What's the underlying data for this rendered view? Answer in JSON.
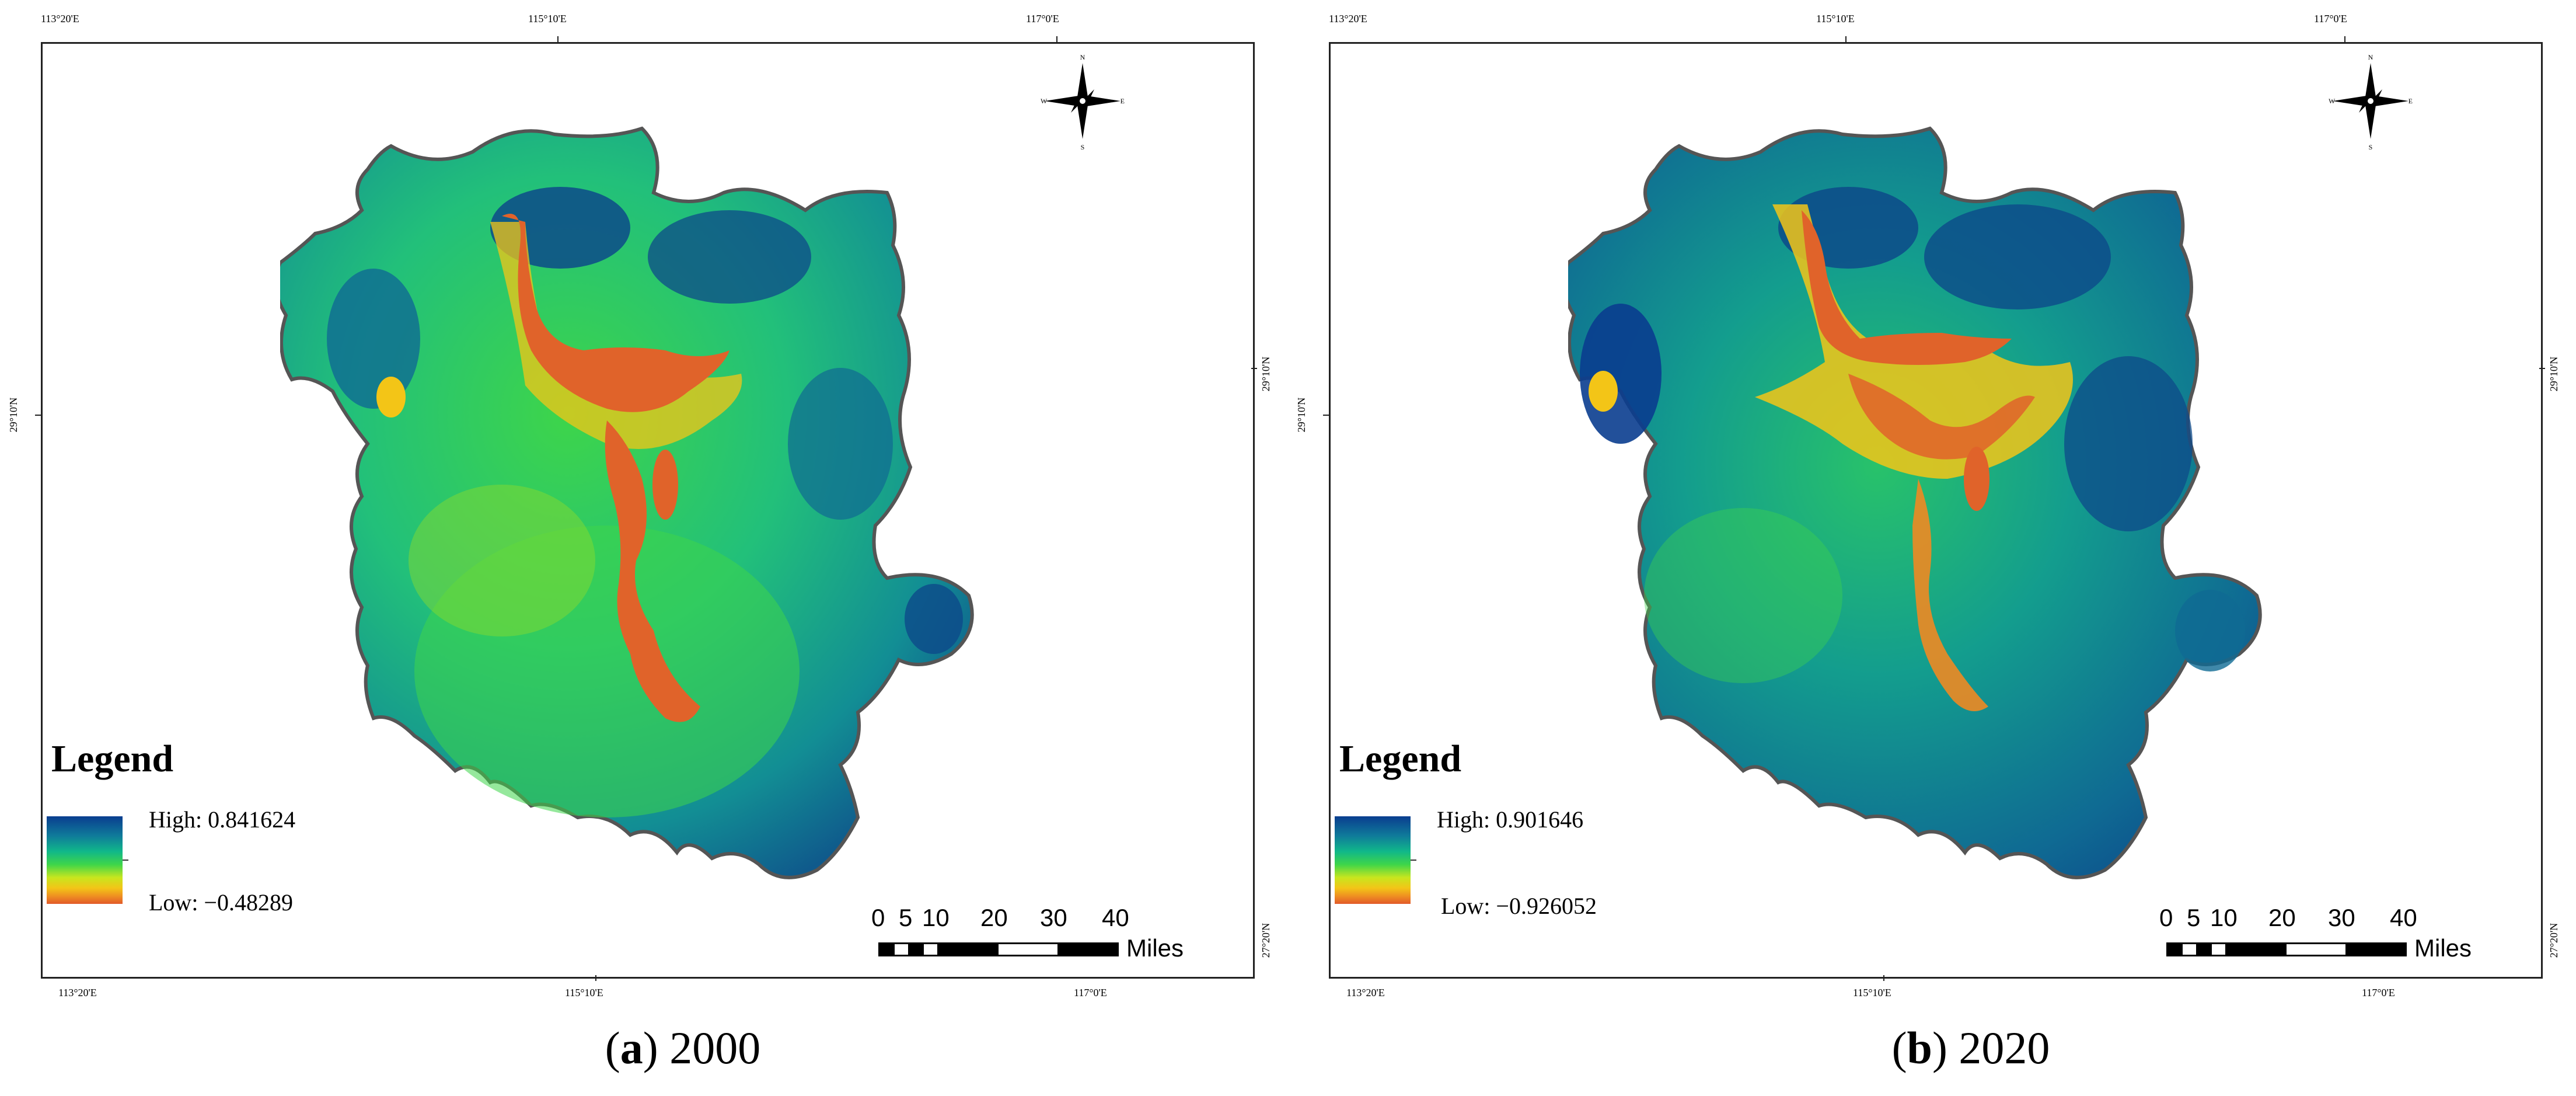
{
  "panels": [
    {
      "caption_letter": "a",
      "caption_year": "2000",
      "coords": {
        "top_left": "113°20'E",
        "top_mid": "115°10'E",
        "top_right": "117°0'E",
        "bottom_left": "113°20'E",
        "bottom_mid": "115°10'E",
        "bottom_right": "117°0'E",
        "left_mid": "29°10'N",
        "right_mid": "29°10'N",
        "right_bottom": "27°20'N"
      },
      "legend": {
        "title": "Legend",
        "high": "High: 0.841624",
        "low": "Low: −0.48289"
      },
      "scale": {
        "labels": [
          "0",
          "5",
          "10",
          "20",
          "30",
          "40"
        ],
        "unit": "Miles"
      },
      "compass": {
        "n": "N",
        "s": "S",
        "e": "E",
        "w": "W"
      }
    },
    {
      "caption_letter": "b",
      "caption_year": "2020",
      "coords": {
        "top_left": "113°20'E",
        "top_mid": "115°10'E",
        "top_right": "117°0'E",
        "bottom_left": "113°20'E",
        "bottom_mid": "115°10'E",
        "bottom_right": "117°0'E",
        "left_mid": "29°10'N",
        "right_mid": "29°10'N",
        "right_bottom": "27°20'N"
      },
      "legend": {
        "title": "Legend",
        "high": "High: 0.901646",
        "low": "Low: −0.926052"
      },
      "scale": {
        "labels": [
          "0",
          "5",
          "10",
          "20",
          "30",
          "40"
        ],
        "unit": "Miles"
      },
      "compass": {
        "n": "N",
        "s": "S",
        "e": "E",
        "w": "W"
      }
    }
  ],
  "colors": {
    "high": "#0a3d8f",
    "mid_high": "#10b78a",
    "mid": "#3ed54a",
    "mid_low": "#f3c517",
    "low": "#e25a2a",
    "outline": "#555555"
  }
}
